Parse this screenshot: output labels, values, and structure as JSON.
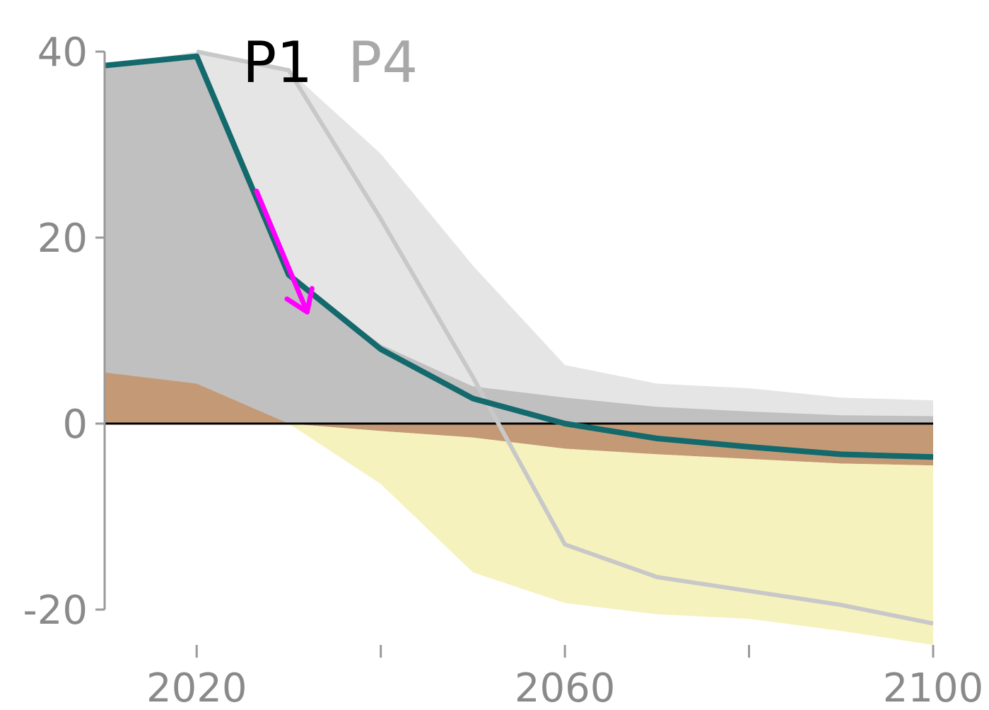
{
  "chart_data": {
    "type": "area",
    "title": "",
    "xlabel": "",
    "ylabel": "",
    "xlim": [
      2010,
      2100
    ],
    "ylim": [
      -20,
      40
    ],
    "grid": false,
    "x_ticks": [
      2020,
      2060,
      2100
    ],
    "x_minor_ticks": [
      2020,
      2040,
      2060,
      2080,
      2100
    ],
    "y_ticks": [
      40,
      20,
      0,
      -20
    ],
    "x_tick_labels": [
      "2020",
      "2060",
      "2100"
    ],
    "y_tick_labels": [
      "40",
      "20",
      "0",
      "-20"
    ],
    "series_labels": [
      "P1",
      "P4"
    ],
    "colors": {
      "p1_line": "#13696b",
      "p4_line": "#c8c8c8",
      "p4_area": "#e5e5e5",
      "p1_area": "#c0c0c0",
      "brown_area": "#c49a76",
      "yellow_area": "#f6f2bd",
      "zero_line": "#000000",
      "axis": "#9a9a9a",
      "arrow": "#ff00ff",
      "p4_label": "#a8a8a8",
      "p1_label": "#000000"
    },
    "series": [
      {
        "name": "P1",
        "kind": "line",
        "x": [
          2010,
          2020,
          2030,
          2040,
          2050,
          2060,
          2070,
          2080,
          2090,
          2100
        ],
        "values": [
          38.5,
          39.5,
          16,
          8,
          2.7,
          0,
          -1.6,
          -2.5,
          -3.3,
          -3.6
        ]
      },
      {
        "name": "P4",
        "kind": "line",
        "x": [
          2020,
          2030,
          2040,
          2050,
          2060,
          2070,
          2080,
          2090,
          2100
        ],
        "values": [
          40,
          38,
          22,
          5,
          -13,
          -16.5,
          -18,
          -19.5,
          -21.5
        ]
      },
      {
        "kind": "area",
        "x": [
          2010,
          2020,
          2030,
          2040,
          2050,
          2060,
          2070,
          2080,
          2090,
          2100
        ],
        "values": [
          38.5,
          40,
          38,
          29,
          17,
          6.3,
          4.3,
          3.8,
          2.8,
          2.5
        ]
      },
      {
        "kind": "area",
        "x": [
          2010,
          2020,
          2030,
          2040,
          2050,
          2060,
          2070,
          2080,
          2090,
          2100
        ],
        "values": [
          38.5,
          39.5,
          16,
          8.5,
          4,
          2.8,
          1.8,
          1.3,
          0.9,
          0.8
        ]
      },
      {
        "kind": "area",
        "x": [
          2010,
          2020,
          2030,
          2040,
          2050,
          2060,
          2070,
          2080,
          2090,
          2100
        ],
        "upper": [
          5.5,
          4.3,
          0,
          0,
          0,
          0,
          0,
          0,
          0,
          0
        ],
        "lower": [
          0,
          0,
          0,
          -0.8,
          -1.5,
          -2.7,
          -3.3,
          -3.8,
          -4.3,
          -4.5
        ]
      },
      {
        "kind": "area",
        "x": [
          2030,
          2040,
          2050,
          2060,
          2070,
          2080,
          2090,
          2100
        ],
        "upper": [
          0,
          -0.8,
          -1.5,
          -2.7,
          -3.3,
          -3.8,
          -4.3,
          -4.5
        ],
        "lower": [
          0,
          -6.5,
          -16,
          -19.3,
          -20.5,
          -21,
          -22.3,
          -23.8
        ]
      }
    ],
    "annotations": [
      {
        "kind": "arrow",
        "from": [
          2026.5,
          25
        ],
        "to": [
          2032,
          12
        ]
      }
    ]
  }
}
